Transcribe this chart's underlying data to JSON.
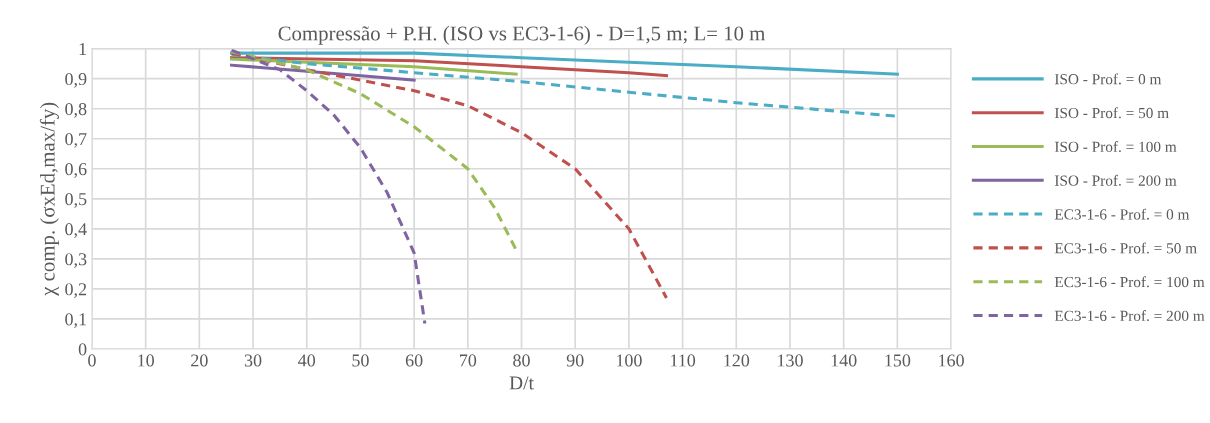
{
  "chart_data": {
    "type": "line",
    "title": "Compressão + P.H. (ISO vs EC3-1-6) - D=1,5 m; L= 10 m",
    "xlabel": "D/t",
    "ylabel": "χ comp. (σxEd,max/fy)",
    "xlim": [
      0,
      160
    ],
    "xticks": [
      0,
      10,
      20,
      30,
      40,
      50,
      60,
      70,
      80,
      90,
      100,
      110,
      120,
      130,
      140,
      150,
      160
    ],
    "ylim": [
      0,
      1
    ],
    "yticks": [
      0,
      {
        "value": 0.1,
        "label": "0,1"
      },
      {
        "value": 0.2,
        "label": "0,2"
      },
      {
        "value": 0.3,
        "label": "0,3"
      },
      {
        "value": 0.4,
        "label": "0,4"
      },
      {
        "value": 0.5,
        "label": "0,5"
      },
      {
        "value": 0.6,
        "label": "0,6"
      },
      {
        "value": 0.7,
        "label": "0,7"
      },
      {
        "value": 0.8,
        "label": "0,8"
      },
      {
        "value": 0.9,
        "label": "0,9"
      },
      1
    ],
    "grid": true,
    "legend": "right",
    "marker": "none",
    "series": [
      {
        "name": "ISO - Prof. = 0 m",
        "color": "#4bacc6",
        "line_style": "solid",
        "x": [
          26,
          60,
          80,
          100,
          120,
          150
        ],
        "values": [
          0.985,
          0.985,
          0.97,
          0.955,
          0.94,
          0.915
        ]
      },
      {
        "name": "ISO - Prof. = 50 m",
        "color": "#c0504d",
        "line_style": "solid",
        "x": [
          26,
          60,
          80,
          100,
          107
        ],
        "values": [
          0.97,
          0.96,
          0.94,
          0.92,
          0.91
        ]
      },
      {
        "name": "ISO - Prof. = 100 m",
        "color": "#9bbb59",
        "line_style": "solid",
        "x": [
          26,
          40,
          60,
          79
        ],
        "values": [
          0.965,
          0.955,
          0.94,
          0.915
        ]
      },
      {
        "name": "ISO - Prof. = 200 m",
        "color": "#8064a2",
        "line_style": "solid",
        "x": [
          26,
          40,
          60
        ],
        "values": [
          0.945,
          0.925,
          0.895
        ]
      },
      {
        "name": "EC3-1-6 - Prof. = 0 m",
        "color": "#4bacc6",
        "line_style": "dashed",
        "x": [
          26,
          40,
          60,
          80,
          100,
          120,
          150
        ],
        "values": [
          0.98,
          0.95,
          0.92,
          0.89,
          0.855,
          0.82,
          0.775
        ]
      },
      {
        "name": "EC3-1-6 - Prof. = 50 m",
        "color": "#c0504d",
        "line_style": "dashed",
        "x": [
          26,
          40,
          60,
          70,
          80,
          90,
          100,
          107
        ],
        "values": [
          0.985,
          0.93,
          0.86,
          0.81,
          0.72,
          0.6,
          0.4,
          0.17
        ]
      },
      {
        "name": "EC3-1-6 - Prof. = 100 m",
        "color": "#9bbb59",
        "line_style": "dashed",
        "x": [
          26,
          40,
          50,
          60,
          70,
          75,
          79
        ],
        "values": [
          0.99,
          0.93,
          0.85,
          0.74,
          0.6,
          0.47,
          0.33
        ]
      },
      {
        "name": "EC3-1-6 - Prof. = 200 m",
        "color": "#8064a2",
        "line_style": "dashed",
        "x": [
          26,
          35,
          40,
          45,
          50,
          55,
          60,
          62
        ],
        "values": [
          0.995,
          0.93,
          0.86,
          0.78,
          0.67,
          0.52,
          0.32,
          0.085
        ]
      }
    ]
  }
}
